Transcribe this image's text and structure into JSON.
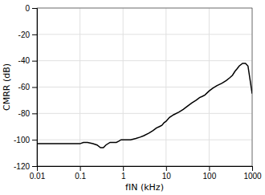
{
  "chart_data": {
    "type": "line",
    "xlabel": "fIN (kHz)",
    "ylabel": "CMRR (dB)",
    "log": "x",
    "grid": true,
    "color": "#000000",
    "xlim": [
      0.01,
      1000
    ],
    "ylim": [
      -120,
      0
    ],
    "xticks": [
      0.01,
      0.1,
      1,
      10,
      100,
      1000
    ],
    "yticks": [
      0,
      -20,
      -40,
      -60,
      -80,
      -100,
      -120
    ],
    "x": [
      0.01,
      0.02,
      0.03,
      0.05,
      0.07,
      0.1,
      0.12,
      0.15,
      0.2,
      0.25,
      0.3,
      0.35,
      0.4,
      0.5,
      0.6,
      0.7,
      0.8,
      0.9,
      1.0,
      1.2,
      1.5,
      2.0,
      2.5,
      3.0,
      4.0,
      5.0,
      6.0,
      7.0,
      8.0,
      9.0,
      10.0,
      12.0,
      15.0,
      20.0,
      25.0,
      30.0,
      40.0,
      50.0,
      60.0,
      70.0,
      80.0,
      100.0,
      120.0,
      150.0,
      200.0,
      250.0,
      300.0,
      350.0,
      400.0,
      450.0,
      500.0,
      600.0,
      700.0,
      800.0,
      1000.0
    ],
    "values": [
      -103,
      -103,
      -103,
      -103,
      -103,
      -103,
      -102,
      -102,
      -103,
      -104,
      -106,
      -106,
      -104,
      -102,
      -102,
      -102,
      -101,
      -100,
      -100,
      -100,
      -100,
      -99,
      -98,
      -97,
      -95,
      -93,
      -91,
      -90,
      -89,
      -87,
      -86,
      -83,
      -81,
      -79,
      -77,
      -75,
      -72,
      -70,
      -68,
      -67,
      -66,
      -63,
      -61,
      -59,
      -57,
      -55,
      -53,
      -51,
      -48,
      -46,
      -44,
      -42,
      -42,
      -44,
      -65
    ]
  }
}
